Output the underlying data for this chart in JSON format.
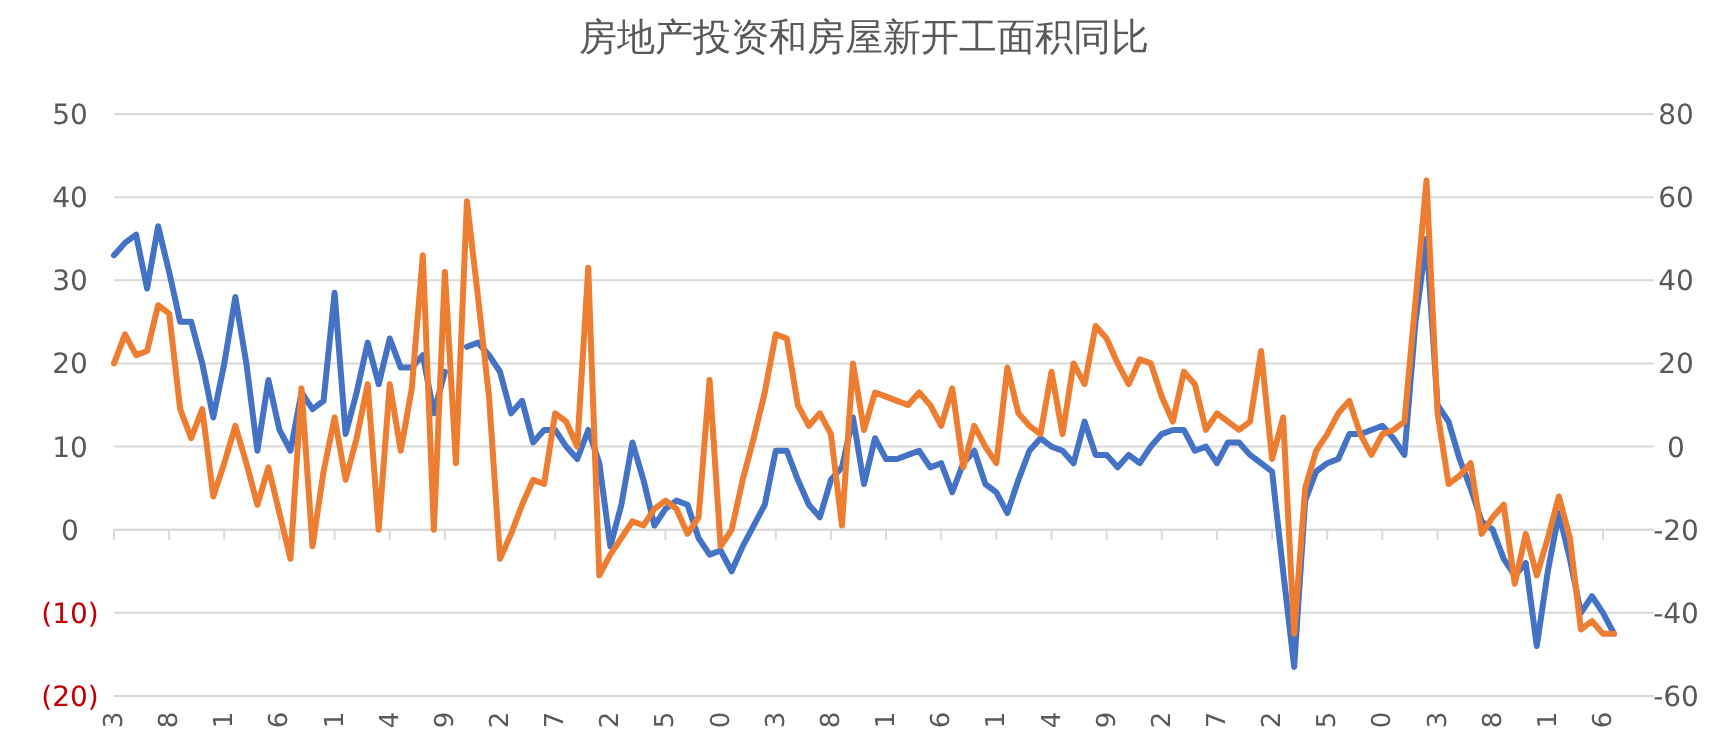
{
  "chart_data": {
    "type": "line",
    "title": "房地产投资和房屋新开工面积同比",
    "categories": [
      "3",
      null,
      null,
      null,
      null,
      "8",
      null,
      null,
      null,
      null,
      "1",
      null,
      null,
      null,
      null,
      "6",
      null,
      null,
      null,
      null,
      "1",
      null,
      null,
      null,
      null,
      "4",
      null,
      null,
      null,
      null,
      "9",
      null,
      null,
      null,
      null,
      "2",
      null,
      null,
      null,
      null,
      "7",
      null,
      null,
      null,
      null,
      "2",
      null,
      null,
      null,
      null,
      "5",
      null,
      null,
      null,
      null,
      "0",
      null,
      null,
      null,
      null,
      "3",
      null,
      null,
      null,
      null,
      "8",
      null,
      null,
      null,
      null,
      "1",
      null,
      null,
      null,
      null,
      "6",
      null,
      null,
      null,
      null,
      "1",
      null,
      null,
      null,
      null,
      "4",
      null,
      null,
      null,
      null,
      "9",
      null,
      null,
      null,
      null,
      "2",
      null,
      null,
      null,
      null,
      "7",
      null,
      null,
      null,
      null,
      "2",
      null,
      null,
      null,
      null,
      "5",
      null,
      null,
      null,
      null,
      "0",
      null,
      null,
      null,
      null,
      "3",
      null,
      null,
      null,
      null,
      "8",
      null,
      null,
      null,
      null,
      "1",
      null,
      null,
      null,
      null,
      "6",
      null
    ],
    "series": [
      {
        "color": "#4472c4",
        "values": [
          33,
          34.5,
          35.5,
          29,
          36.5,
          31,
          25,
          25,
          20,
          13.5,
          20,
          28,
          20,
          9.5,
          18,
          12,
          9.5,
          16.5,
          14.5,
          15.5,
          28.5,
          11.5,
          16.5,
          22.5,
          17.5,
          23,
          19.5,
          19.5,
          21,
          14,
          19,
          null,
          22,
          22.5,
          21,
          19,
          14,
          15.5,
          10.5,
          12,
          12,
          10,
          8.5,
          12,
          8,
          -2,
          3,
          10.5,
          6,
          0.5,
          2.5,
          3.5,
          3,
          -1,
          -3,
          -2.5,
          -5,
          -2,
          0.5,
          3,
          9.5,
          9.5,
          6,
          3,
          1.5,
          6,
          7.5,
          13.5,
          5.5,
          11,
          8.5,
          8.5,
          9,
          9.5,
          7.5,
          8,
          4.5,
          8,
          9.5,
          5.5,
          4.5,
          2,
          6,
          9.5,
          11,
          10,
          9.5,
          8,
          13,
          9,
          9,
          7.5,
          9,
          8,
          10,
          11.5,
          12,
          12,
          9.5,
          10,
          8,
          10.5,
          10.5,
          9,
          8,
          7,
          -5,
          -16.5,
          3.5,
          7,
          8,
          8.5,
          11.5,
          11.5,
          12,
          12.5,
          11,
          9,
          25,
          35,
          15,
          13,
          8.5,
          5,
          1,
          0,
          -3.5,
          -5.5,
          -4,
          -14,
          -5,
          2,
          -3.5,
          -10,
          -8,
          -10,
          -12.5
        ]
      },
      {
        "color": "#ed7d31",
        "axis": "y2",
        "values": [
          20,
          27,
          22,
          23,
          34,
          32,
          9,
          2,
          9,
          -12,
          -4,
          5,
          -4,
          -14,
          -5,
          -16,
          -27,
          14,
          -24,
          -6,
          7,
          -8,
          2,
          15,
          -20,
          15,
          -1,
          14,
          46,
          -20,
          42,
          -4,
          59,
          36,
          12,
          -27,
          -21,
          -14,
          -8,
          -9,
          8,
          6,
          0,
          43,
          -31,
          -26,
          -22,
          -18,
          -19,
          -15,
          -13,
          -15,
          -21,
          -17,
          16,
          -24,
          -20,
          -8,
          2,
          13,
          27,
          26,
          10,
          5,
          8,
          3,
          -19,
          20,
          4,
          13,
          12,
          11,
          10,
          13,
          10,
          5,
          14,
          -5,
          5,
          0,
          -4,
          19,
          8,
          5,
          3,
          18,
          3,
          20,
          15,
          29,
          26,
          20,
          15,
          21,
          20,
          12,
          6,
          18,
          15,
          4,
          8,
          6,
          4,
          6,
          23,
          -3,
          7,
          -45,
          -10,
          -1,
          3,
          8,
          11,
          3,
          -2,
          3,
          4,
          6,
          35,
          64,
          8,
          -9,
          -7,
          -4,
          -21,
          -17,
          -14,
          -33,
          -21,
          -31,
          -22,
          -12,
          -22,
          -44,
          -42,
          -45,
          -45
        ]
      }
    ],
    "ylim": [
      -20,
      50
    ],
    "yticks": [
      50,
      40,
      30,
      20,
      10,
      0,
      {
        "value": -10,
        "label": "(10)"
      },
      {
        "value": -20,
        "label": "(20)"
      }
    ],
    "y2lim": [
      -60,
      80
    ],
    "y2ticks": [
      80,
      60,
      40,
      20,
      0,
      -20,
      -40,
      -60
    ],
    "grid": "y"
  }
}
